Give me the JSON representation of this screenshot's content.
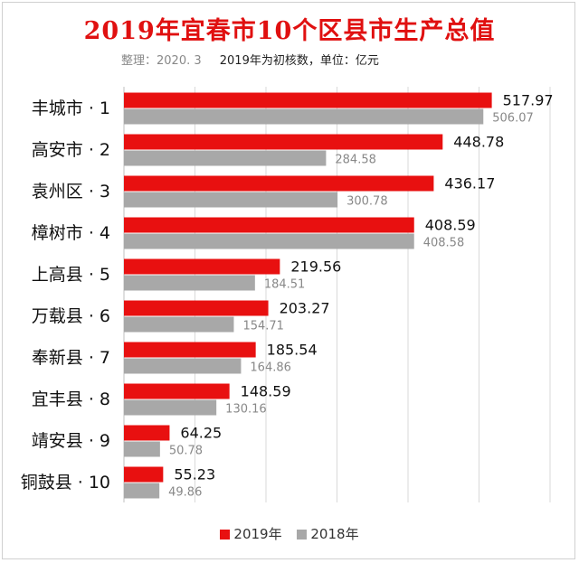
{
  "title": "2019年宜春市10个区县市生产总值",
  "subtitle_note": "整理：2020. 3",
  "subtitle_text": "2019年为初核数，单位：亿元",
  "legend": [
    {
      "label": "2019年",
      "color": "#e81010"
    },
    {
      "label": "2018年",
      "color": "#a8a8a8"
    }
  ],
  "chart_data": {
    "type": "bar",
    "orientation": "horizontal",
    "categories": [
      "丰城市 · 1",
      "高安市 · 2",
      "袁州区 · 3",
      "樟树市 · 4",
      "上高县 · 5",
      "万载县 · 6",
      "奉新县 · 7",
      "宜丰县 · 8",
      "靖安县 · 9",
      "铜鼓县 · 10"
    ],
    "series": [
      {
        "name": "2019年",
        "color": "#e81010",
        "values": [
          517.97,
          448.78,
          436.17,
          408.59,
          219.56,
          203.27,
          185.54,
          148.59,
          64.25,
          55.23
        ]
      },
      {
        "name": "2018年",
        "color": "#a8a8a8",
        "values": [
          506.07,
          284.58,
          300.78,
          408.58,
          184.51,
          154.71,
          164.86,
          130.16,
          50.78,
          49.86
        ]
      }
    ],
    "xlim": [
      0,
      600
    ],
    "grid": true,
    "legend_position": "bottom"
  }
}
